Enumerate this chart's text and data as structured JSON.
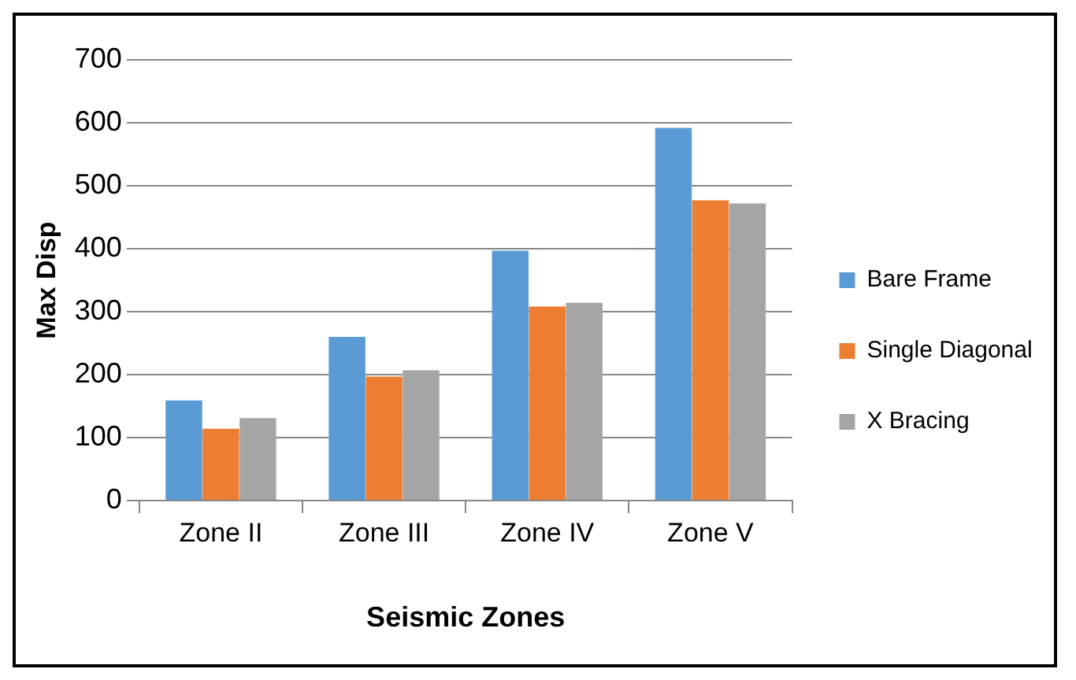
{
  "chart_data": {
    "type": "bar",
    "xlabel": "Seismic Zones",
    "ylabel": "Max Disp",
    "categories": [
      "Zone II",
      "Zone III",
      "Zone IV",
      "Zone V"
    ],
    "series": [
      {
        "name": "Bare Frame",
        "color": "#5b9bd5",
        "values": [
          159,
          260,
          397,
          592
        ]
      },
      {
        "name": "Single Diagonal",
        "color": "#ed7d31",
        "values": [
          114,
          197,
          308,
          477
        ]
      },
      {
        "name": "X Bracing",
        "color": "#a5a5a5",
        "values": [
          131,
          207,
          314,
          472
        ]
      }
    ],
    "ylim": [
      0,
      700
    ],
    "yticks": [
      0,
      100,
      200,
      300,
      400,
      500,
      600,
      700
    ],
    "grid": "y",
    "legend": "right"
  }
}
